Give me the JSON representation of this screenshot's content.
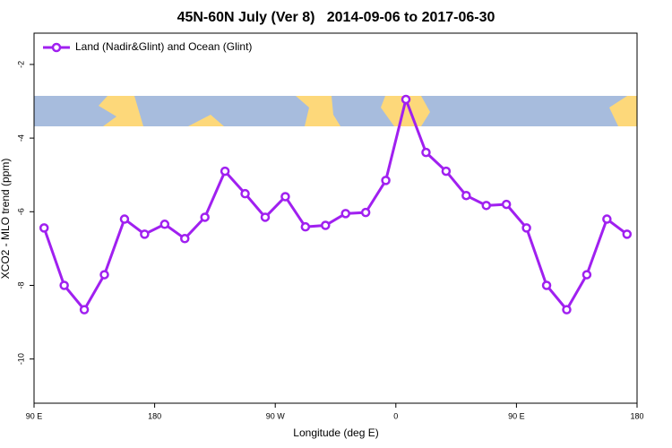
{
  "chart_data": {
    "type": "line",
    "title": "45N-60N July (Ver 8)   2014-09-06 to 2017-06-30",
    "x_label": "Longitude (deg E)",
    "y_label": "XCO2 - MLO trend (ppm)",
    "x": [
      97.5,
      112.5,
      127.5,
      142.5,
      157.5,
      172.5,
      187.5,
      202.5,
      217.5,
      232.5,
      247.5,
      262.5,
      277.5,
      292.5,
      307.5,
      322.5,
      337.5,
      352.5,
      367.5,
      382.5,
      397.5,
      412.5,
      427.5,
      442.5,
      457.5,
      472.5,
      487.5,
      502.5,
      517.5,
      532.5
    ],
    "series": [
      {
        "name": "Land (Nadir&Glint) and Ocean (Glint)",
        "color": "#a020f0",
        "values": [
          -6.44,
          -8.0,
          -8.66,
          -7.71,
          -6.2,
          -6.61,
          -6.34,
          -6.73,
          -6.15,
          -4.9,
          -5.51,
          -6.15,
          -5.59,
          -6.41,
          -6.37,
          -6.05,
          -6.02,
          -5.15,
          -2.95,
          -4.39,
          -4.9,
          -5.56,
          -5.83,
          -5.8,
          -6.44,
          -8.0,
          -8.66,
          -7.71,
          -6.2,
          -6.61
        ]
      }
    ],
    "xlim": [
      90,
      540
    ],
    "xticks": [
      {
        "value": 90,
        "label": "90 E"
      },
      180,
      {
        "value": 270,
        "label": "90 W"
      },
      {
        "value": 360,
        "label": "0"
      },
      {
        "value": 450,
        "label": "90 E"
      },
      {
        "value": 540,
        "label": "180"
      }
    ],
    "ylim": [
      -11.2,
      -1.15
    ],
    "yticks": [
      -2,
      -4,
      -6,
      -8,
      -10
    ],
    "legend": "top-left"
  }
}
